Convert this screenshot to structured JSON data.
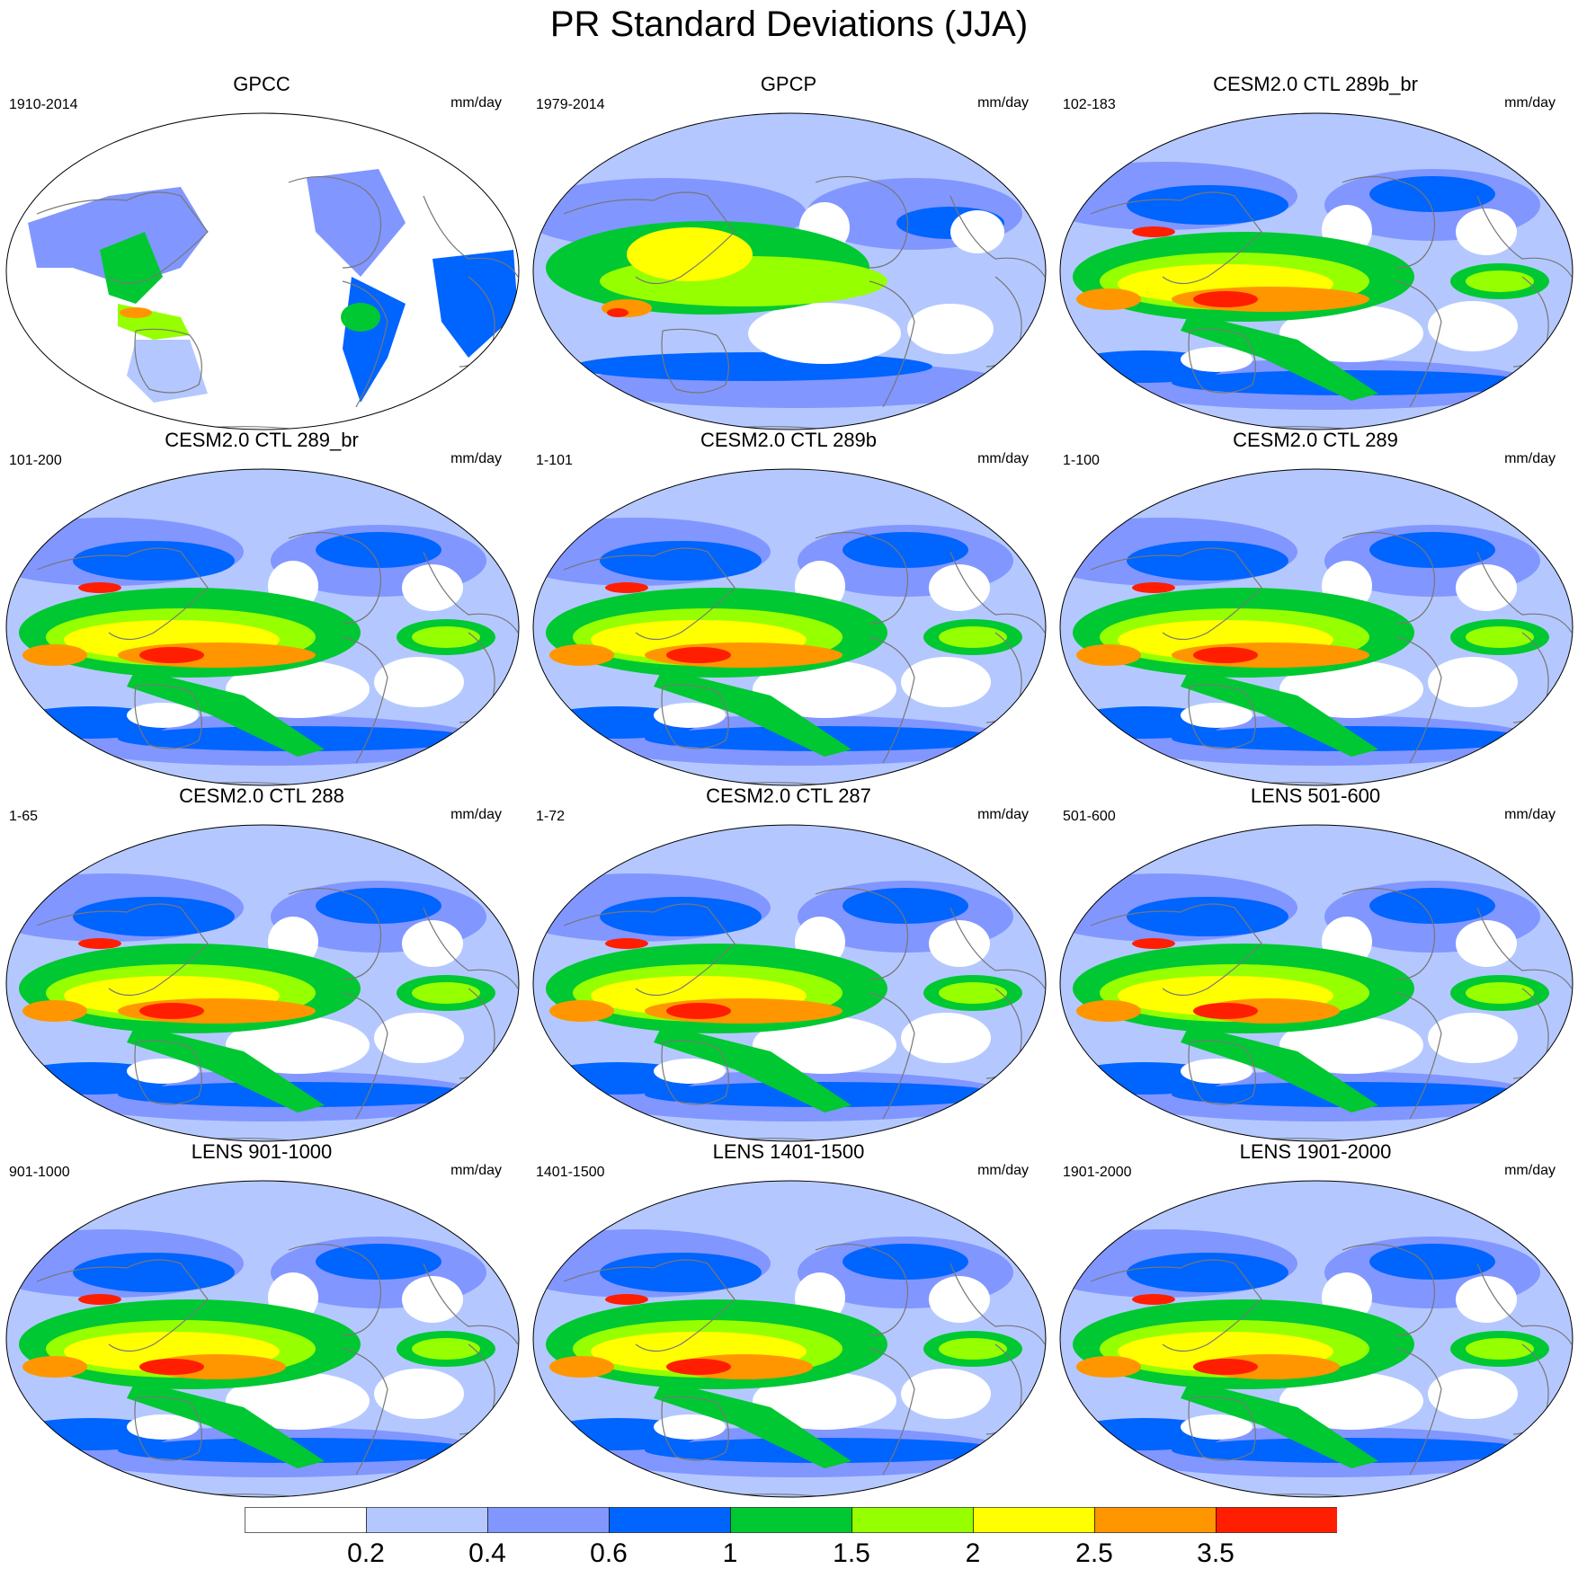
{
  "figure": {
    "title": "PR Standard Deviations (JJA)"
  },
  "panels": [
    {
      "title": "GPCC",
      "years": "1910-2014",
      "units": "mm/day",
      "kind": "land"
    },
    {
      "title": "GPCP",
      "years": "1979-2014",
      "units": "mm/day",
      "kind": "obs"
    },
    {
      "title": "CESM2.0 CTL 289b_br",
      "years": "102-183",
      "units": "mm/day",
      "kind": "model"
    },
    {
      "title": "CESM2.0 CTL 289_br",
      "years": "101-200",
      "units": "mm/day",
      "kind": "model"
    },
    {
      "title": "CESM2.0 CTL 289b",
      "years": "1-101",
      "units": "mm/day",
      "kind": "model"
    },
    {
      "title": "CESM2.0 CTL 289",
      "years": "1-100",
      "units": "mm/day",
      "kind": "model"
    },
    {
      "title": "CESM2.0 CTL 288",
      "years": "1-65",
      "units": "mm/day",
      "kind": "model"
    },
    {
      "title": "CESM2.0 CTL 287",
      "years": "1-72",
      "units": "mm/day",
      "kind": "model"
    },
    {
      "title": "LENS 501-600",
      "years": "501-600",
      "units": "mm/day",
      "kind": "lens"
    },
    {
      "title": "LENS 901-1000",
      "years": "901-1000",
      "units": "mm/day",
      "kind": "lens"
    },
    {
      "title": "LENS 1401-1500",
      "years": "1401-1500",
      "units": "mm/day",
      "kind": "lens"
    },
    {
      "title": "LENS 1901-2000",
      "years": "1901-2000",
      "units": "mm/day",
      "kind": "lens"
    }
  ],
  "colorbar": {
    "labels": [
      "0.2",
      "0.4",
      "0.6",
      "1",
      "1.5",
      "2",
      "2.5",
      "3.5"
    ],
    "colors": [
      "#ffffff",
      "#b4c8ff",
      "#8296ff",
      "#0064ff",
      "#00c832",
      "#96ff00",
      "#ffff00",
      "#ff9600",
      "#ff1e00"
    ]
  }
}
